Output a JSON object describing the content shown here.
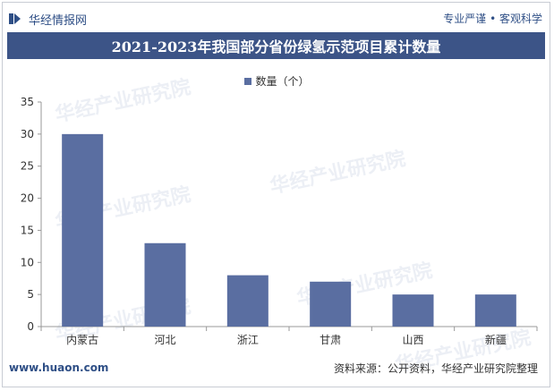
{
  "header": {
    "brand": "华经情报网",
    "slogan": "专业严谨 • 客观科学"
  },
  "title": "2021-2023年我国部分省份绿氢示范项目累计数量",
  "chart_data": {
    "type": "bar",
    "categories": [
      "内蒙古",
      "河北",
      "浙江",
      "甘肃",
      "山西",
      "新疆"
    ],
    "series": [
      {
        "name": "数量（个）",
        "values": [
          30,
          13,
          8,
          7,
          5,
          5
        ]
      }
    ],
    "ylim": [
      0,
      35
    ],
    "yticks": [
      0,
      5,
      10,
      15,
      20,
      25,
      30,
      35
    ],
    "grid": false,
    "legend_position": "top-center",
    "bar_color": "#5a6ea1"
  },
  "footer": {
    "website": "www.huaon.com",
    "source": "资料来源：公开资料，华经产业研究院整理"
  },
  "watermark": "华经产业研究院"
}
